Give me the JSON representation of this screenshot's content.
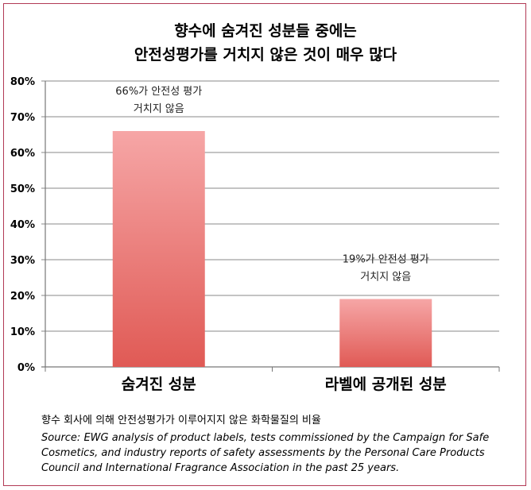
{
  "chart_data": {
    "type": "bar",
    "title_lines": [
      "향수에 숨겨진 성분들 중에는",
      "안전성평가를 거치지 않은 것이 매우 많다"
    ],
    "categories": [
      "숨겨진 성분",
      "라벨에 공개된 성분"
    ],
    "values": [
      66,
      19
    ],
    "y_unit": "%",
    "ylim": [
      0,
      80
    ],
    "yticks": [
      "0%",
      "10%",
      "20%",
      "30%",
      "40%",
      "50%",
      "60%",
      "70%",
      "80%"
    ],
    "grid": true,
    "bar_color_top": "#f6a6a6",
    "bar_color_bottom": "#e05a55",
    "annotations": [
      [
        "66%가 안전성 평가",
        "거치지 않음"
      ],
      [
        "19%가 안전성 평가",
        "거치지 않음"
      ]
    ]
  },
  "caption": "향수 회사에 의해 안전성평가가 이루어지지 않은 화학물질의 비율",
  "source": "Source: EWG analysis of product labels, tests commissioned by the Campaign for Safe Cosmetics, and industry reports of safety assessments by the Personal Care Products Council and International Fragrance Association in the past 25 years.",
  "colors": {
    "border": "#b23a55",
    "grid": "#888888"
  }
}
